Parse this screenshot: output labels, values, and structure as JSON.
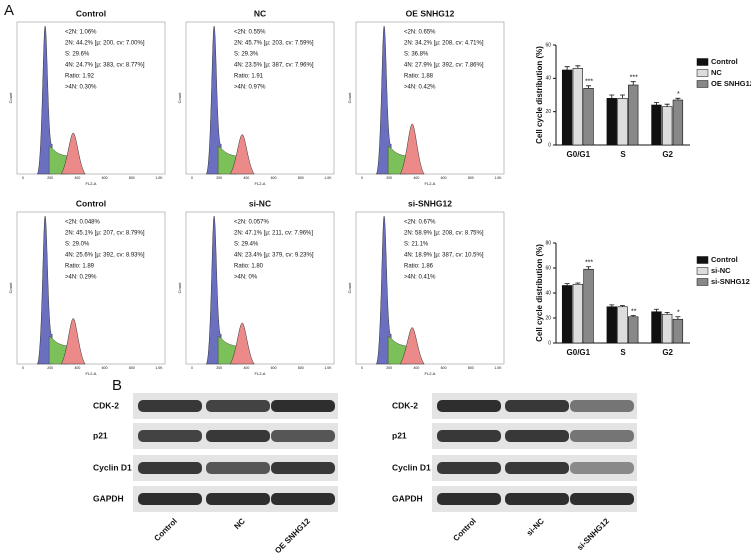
{
  "panel_a": {
    "label": "A",
    "histogram_x_label": "FL2-A",
    "histogram_y_label": "Count",
    "histogram_x_ticks": [
      "0",
      "200",
      "400",
      "600",
      "800",
      "1.0K"
    ],
    "histograms": [
      {
        "title": "Control",
        "stats": [
          "<2N: 1.06%",
          "2N: 44.2%  [μ: 200, cv: 7.00%]",
          "S: 29.6%",
          "4N: 24.7%  [μ: 383, cv: 8.77%]",
          "Ratio: 1.92",
          ">4N: 0.30%"
        ]
      },
      {
        "title": "NC",
        "stats": [
          "<2N: 0.55%",
          "2N: 45.7%  [μ: 203, cv: 7.59%]",
          "S: 29.3%",
          "4N: 23.5%  [μ: 387, cv: 7.96%]",
          "Ratio: 1.91",
          ">4N: 0.97%"
        ]
      },
      {
        "title": "OE SNHG12",
        "stats": [
          "<2N: 0.65%",
          "2N: 34.2%  [μ: 208, cv: 4.71%]",
          "S: 36.8%",
          "4N: 27.9%  [μ: 392, cv: 7.86%]",
          "Ratio: 1.88",
          ">4N: 0.42%"
        ]
      },
      {
        "title": "Control",
        "stats": [
          "<2N: 0.048%",
          "2N: 45.1%  [μ: 207, cv: 8.79%]",
          "S: 29.0%",
          "4N: 25.6%  [μ: 392, cv: 8.93%]",
          "Ratio: 1.89",
          ">4N: 0.29%"
        ]
      },
      {
        "title": "si-NC",
        "stats": [
          "<2N: 0.057%",
          "2N: 47.1%  [μ: 211, cv: 7.96%]",
          "S: 29.4%",
          "4N: 23.4%  [μ: 379, cv: 9.23%]",
          "Ratio: 1.80",
          ">4N: 0%"
        ]
      },
      {
        "title": "si-SNHG12",
        "stats": [
          "<2N: 0.67%",
          "2N: 58.9%  [μ: 208, cv: 8.75%]",
          "S: 21.1%",
          "4N: 18.9%  [μ: 387, cv: 10.5%]",
          "Ratio: 1.86",
          ">4N: 0.41%"
        ]
      }
    ]
  },
  "chart_data": [
    {
      "type": "bar",
      "y_label": "Cell cycle distribution (%)",
      "categories": [
        "G0/G1",
        "S",
        "G2"
      ],
      "ylim": [
        0,
        60
      ],
      "yticks": [
        0,
        20,
        40,
        60
      ],
      "legend": "right",
      "series": [
        {
          "name": "Control",
          "color": "#111111",
          "values": [
            45,
            28,
            24
          ],
          "errors": [
            2,
            2,
            1.5
          ],
          "annotations": [
            null,
            null,
            null
          ]
        },
        {
          "name": "NC",
          "color": "#dddddd",
          "values": [
            46,
            28,
            23
          ],
          "errors": [
            1.5,
            2,
            1.5
          ],
          "annotations": [
            null,
            null,
            null
          ]
        },
        {
          "name": "OE SNHG12",
          "color": "#888888",
          "values": [
            34,
            36,
            27
          ],
          "errors": [
            1.5,
            2,
            1
          ],
          "annotations": [
            "***",
            "***",
            "*"
          ]
        }
      ]
    },
    {
      "type": "bar",
      "y_label": "Cell cycle distribution (%)",
      "categories": [
        "G0/G1",
        "S",
        "G2"
      ],
      "ylim": [
        0,
        80
      ],
      "yticks": [
        0,
        20,
        40,
        60,
        80
      ],
      "legend": "right",
      "series": [
        {
          "name": "Control",
          "color": "#111111",
          "values": [
            46,
            29,
            25
          ],
          "errors": [
            1.5,
            1.5,
            2
          ],
          "annotations": [
            null,
            null,
            null
          ]
        },
        {
          "name": "si-NC",
          "color": "#dddddd",
          "values": [
            47,
            29,
            23
          ],
          "errors": [
            1,
            1,
            1.5
          ],
          "annotations": [
            null,
            null,
            null
          ]
        },
        {
          "name": "si-SNHG12",
          "color": "#888888",
          "values": [
            59,
            21,
            19
          ],
          "errors": [
            2,
            1,
            2
          ],
          "annotations": [
            "***",
            "**",
            "*"
          ]
        }
      ]
    }
  ],
  "panel_b": {
    "label": "B",
    "blots": [
      {
        "rows": [
          "CDK-2",
          "p21",
          "Cyclin D1",
          "GAPDH"
        ],
        "columns": [
          "Control",
          "NC",
          "OE SNHG12"
        ]
      },
      {
        "rows": [
          "CDK-2",
          "p21",
          "Cyclin D1",
          "GAPDH"
        ],
        "columns": [
          "Control",
          "si-NC",
          "si-SNHG12"
        ]
      }
    ]
  }
}
